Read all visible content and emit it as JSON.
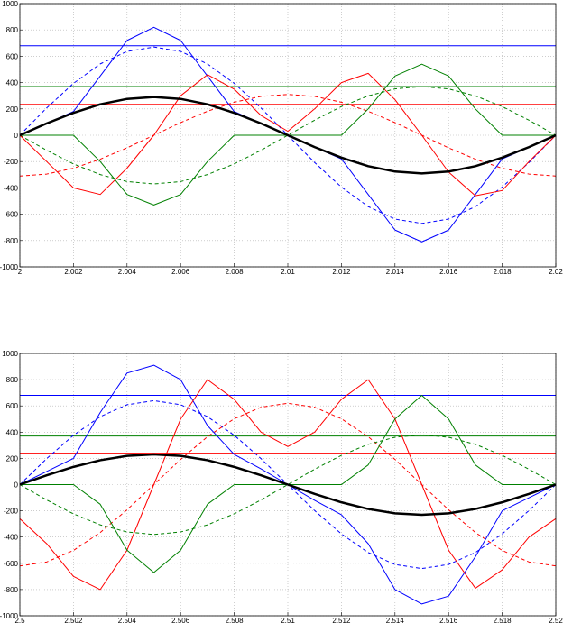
{
  "chart_data": [
    {
      "type": "line",
      "x": [
        2,
        2.001,
        2.002,
        2.003,
        2.004,
        2.005,
        2.006,
        2.007,
        2.008,
        2.009,
        2.01,
        2.011,
        2.012,
        2.013,
        2.014,
        2.015,
        2.016,
        2.017,
        2.018,
        2.019,
        2.02
      ],
      "xlim": [
        2,
        2.02
      ],
      "xticks": [
        2,
        2.002,
        2.004,
        2.006,
        2.008,
        2.01,
        2.012,
        2.014,
        2.016,
        2.018,
        2.02
      ],
      "ylim": [
        -1000,
        1000
      ],
      "yticks": [
        -1000,
        -800,
        -600,
        -400,
        -200,
        0,
        200,
        400,
        600,
        800,
        1000
      ],
      "grid": true,
      "series": [
        {
          "color": "#0000ff",
          "dash": false,
          "width": 1,
          "values": [
            680,
            680,
            680,
            680,
            680,
            680,
            680,
            680,
            680,
            680,
            680,
            680,
            680,
            680,
            680,
            680,
            680,
            680,
            680,
            680,
            680
          ]
        },
        {
          "color": "#008000",
          "dash": false,
          "width": 1,
          "values": [
            370,
            370,
            370,
            370,
            370,
            370,
            370,
            370,
            370,
            370,
            370,
            370,
            370,
            370,
            370,
            370,
            370,
            370,
            370,
            370,
            370
          ]
        },
        {
          "color": "#ff0000",
          "dash": false,
          "width": 1,
          "values": [
            235,
            235,
            235,
            235,
            235,
            235,
            235,
            235,
            235,
            235,
            235,
            235,
            235,
            235,
            235,
            235,
            235,
            235,
            235,
            235,
            235
          ]
        },
        {
          "color": "#0000ff",
          "dash": true,
          "width": 1,
          "values": [
            0,
            207,
            394,
            542,
            637,
            670,
            637,
            542,
            394,
            207,
            0,
            -207,
            -394,
            -542,
            -637,
            -670,
            -637,
            -542,
            -394,
            -207,
            0
          ]
        },
        {
          "color": "#ff0000",
          "dash": true,
          "width": 1,
          "values": [
            -310,
            -295,
            -251,
            -182,
            -96,
            0,
            96,
            182,
            251,
            295,
            310,
            295,
            251,
            182,
            96,
            0,
            -96,
            -182,
            -251,
            -295,
            -310
          ]
        },
        {
          "color": "#008000",
          "dash": true,
          "width": 1,
          "values": [
            0,
            -114,
            -218,
            -299,
            -352,
            -370,
            -352,
            -299,
            -218,
            -114,
            0,
            114,
            218,
            299,
            352,
            370,
            352,
            299,
            218,
            114,
            0
          ]
        },
        {
          "color": "#0000ff",
          "dash": false,
          "width": 1,
          "values": [
            0,
            90,
            180,
            450,
            720,
            820,
            720,
            450,
            180,
            90,
            0,
            -90,
            -180,
            -450,
            -720,
            -810,
            -720,
            -450,
            -180,
            -90,
            0
          ]
        },
        {
          "color": "#ff0000",
          "dash": false,
          "width": 1,
          "values": [
            0,
            -200,
            -400,
            -450,
            -250,
            0,
            300,
            460,
            350,
            150,
            30,
            200,
            400,
            470,
            270,
            0,
            -280,
            -460,
            -420,
            -200,
            0
          ]
        },
        {
          "color": "#008000",
          "dash": false,
          "width": 1,
          "values": [
            0,
            0,
            0,
            -200,
            -450,
            -530,
            -450,
            -200,
            0,
            0,
            0,
            0,
            0,
            200,
            450,
            540,
            450,
            200,
            0,
            0,
            0
          ]
        },
        {
          "color": "#000000",
          "dash": false,
          "width": 2.5,
          "values": [
            0,
            90,
            170,
            235,
            276,
            290,
            276,
            235,
            170,
            90,
            0,
            -90,
            -170,
            -235,
            -276,
            -290,
            -276,
            -235,
            -170,
            -90,
            0
          ]
        }
      ]
    },
    {
      "type": "line",
      "x": [
        2.5,
        2.501,
        2.502,
        2.503,
        2.504,
        2.505,
        2.506,
        2.507,
        2.508,
        2.509,
        2.51,
        2.511,
        2.512,
        2.513,
        2.514,
        2.515,
        2.516,
        2.517,
        2.518,
        2.519,
        2.52
      ],
      "xlim": [
        2.5,
        2.52
      ],
      "xticks": [
        2.5,
        2.502,
        2.504,
        2.506,
        2.508,
        2.51,
        2.512,
        2.514,
        2.516,
        2.518,
        2.52
      ],
      "ylim": [
        -1000,
        1000
      ],
      "yticks": [
        -1000,
        -800,
        -600,
        -400,
        -200,
        0,
        200,
        400,
        600,
        800,
        1000
      ],
      "grid": true,
      "series": [
        {
          "color": "#0000ff",
          "dash": false,
          "width": 1,
          "values": [
            680,
            680,
            680,
            680,
            680,
            680,
            680,
            680,
            680,
            680,
            680,
            680,
            680,
            680,
            680,
            680,
            680,
            680,
            680,
            680,
            680
          ]
        },
        {
          "color": "#008000",
          "dash": false,
          "width": 1,
          "values": [
            370,
            370,
            370,
            370,
            370,
            370,
            370,
            370,
            370,
            370,
            370,
            370,
            370,
            370,
            370,
            370,
            370,
            370,
            370,
            370,
            370
          ]
        },
        {
          "color": "#ff0000",
          "dash": false,
          "width": 1,
          "values": [
            240,
            240,
            240,
            240,
            240,
            240,
            240,
            240,
            240,
            240,
            240,
            240,
            240,
            240,
            240,
            240,
            240,
            240,
            240,
            240,
            240
          ]
        },
        {
          "color": "#0000ff",
          "dash": true,
          "width": 1,
          "values": [
            0,
            198,
            376,
            518,
            609,
            640,
            609,
            518,
            376,
            198,
            0,
            -198,
            -376,
            -518,
            -609,
            -640,
            -609,
            -518,
            -376,
            -198,
            0
          ]
        },
        {
          "color": "#ff0000",
          "dash": true,
          "width": 1,
          "values": [
            -620,
            -590,
            -502,
            -365,
            -192,
            0,
            192,
            365,
            502,
            590,
            620,
            590,
            502,
            365,
            192,
            0,
            -192,
            -365,
            -502,
            -590,
            -620
          ]
        },
        {
          "color": "#008000",
          "dash": true,
          "width": 1,
          "values": [
            0,
            -117,
            -223,
            -307,
            -361,
            -380,
            -361,
            -307,
            -223,
            -117,
            0,
            117,
            223,
            307,
            361,
            380,
            361,
            307,
            223,
            117,
            0
          ]
        },
        {
          "color": "#0000ff",
          "dash": false,
          "width": 1,
          "values": [
            0,
            100,
            200,
            550,
            850,
            910,
            800,
            450,
            230,
            120,
            0,
            -120,
            -230,
            -450,
            -800,
            -910,
            -850,
            -550,
            -200,
            -100,
            0
          ]
        },
        {
          "color": "#ff0000",
          "dash": false,
          "width": 1,
          "values": [
            -260,
            -450,
            -700,
            -800,
            -500,
            0,
            500,
            800,
            650,
            400,
            290,
            400,
            650,
            800,
            500,
            0,
            -500,
            -790,
            -650,
            -400,
            -260
          ]
        },
        {
          "color": "#008000",
          "dash": false,
          "width": 1,
          "values": [
            0,
            0,
            0,
            -150,
            -500,
            -670,
            -500,
            -150,
            0,
            0,
            0,
            0,
            0,
            150,
            500,
            680,
            500,
            150,
            0,
            0,
            0
          ]
        },
        {
          "color": "#000000",
          "dash": false,
          "width": 2.5,
          "values": [
            0,
            71,
            135,
            186,
            219,
            230,
            219,
            186,
            135,
            71,
            0,
            -71,
            -135,
            -186,
            -219,
            -230,
            -219,
            -186,
            -135,
            -71,
            0
          ]
        }
      ]
    }
  ]
}
